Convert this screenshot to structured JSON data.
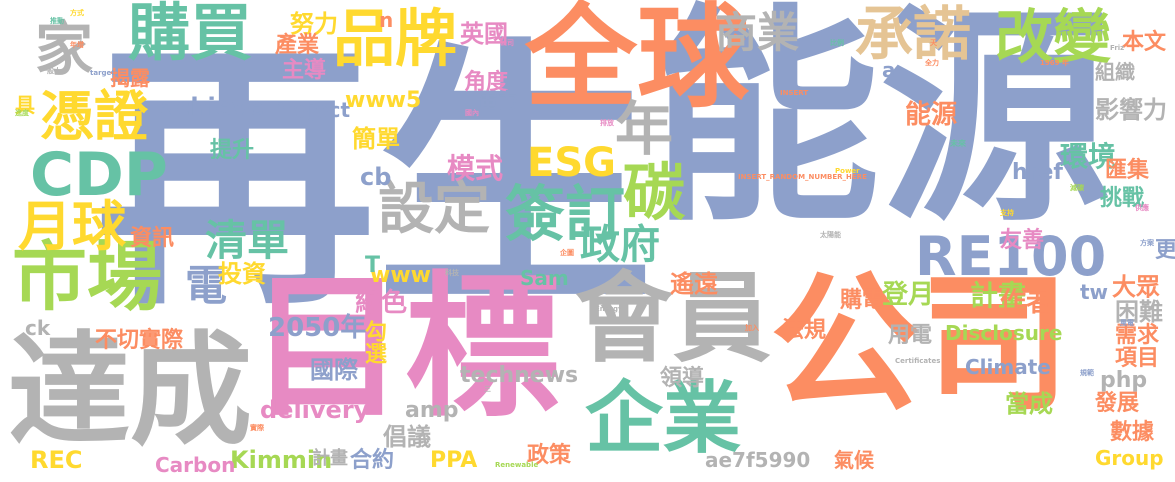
{
  "palette": {
    "blue": "#8da0cb",
    "orange": "#fc8d62",
    "pink": "#e78ac3",
    "green": "#a6d854",
    "teal": "#66c2a5",
    "yellow": "#ffd92f",
    "tan": "#e5c494",
    "gray": "#b3b3b3"
  },
  "words": [
    {
      "text": "再生",
      "color": "blue"
    },
    {
      "text": "能源",
      "color": "blue"
    },
    {
      "text": "目標",
      "color": "pink"
    },
    {
      "text": "公司",
      "color": "orange"
    },
    {
      "text": "全球",
      "color": "orange"
    },
    {
      "text": "達成",
      "color": "gray"
    },
    {
      "text": "會員",
      "color": "gray"
    },
    {
      "text": "企業",
      "color": "teal"
    },
    {
      "text": "市場",
      "color": "green"
    },
    {
      "text": "購買",
      "color": "teal"
    },
    {
      "text": "品牌",
      "color": "yellow"
    },
    {
      "text": "承諾",
      "color": "tan"
    },
    {
      "text": "改變",
      "color": "green"
    },
    {
      "text": "商業",
      "color": "gray"
    },
    {
      "text": "家",
      "color": "gray"
    },
    {
      "text": "憑證",
      "color": "yellow"
    },
    {
      "text": "CDP",
      "color": "teal"
    },
    {
      "text": "月球",
      "color": "yellow"
    },
    {
      "text": "設定",
      "color": "gray"
    },
    {
      "text": "簽訂",
      "color": "teal"
    },
    {
      "text": "RE100",
      "color": "blue"
    },
    {
      "text": "碳",
      "color": "green"
    },
    {
      "text": "政府",
      "color": "teal"
    },
    {
      "text": "年",
      "color": "gray"
    },
    {
      "text": "ESG",
      "color": "yellow"
    },
    {
      "text": "清單",
      "color": "teal"
    },
    {
      "text": "電",
      "color": "blue"
    },
    {
      "text": "2050年",
      "color": "blue"
    },
    {
      "text": "國際",
      "color": "blue"
    },
    {
      "text": "delivery",
      "color": "pink"
    },
    {
      "text": "technews",
      "color": "gray"
    },
    {
      "text": "英國",
      "color": "pink"
    },
    {
      "text": "努力",
      "color": "yellow"
    },
    {
      "text": "產業",
      "color": "orange"
    },
    {
      "text": "主導",
      "color": "pink"
    },
    {
      "text": "角度",
      "color": "pink"
    },
    {
      "text": "achieve",
      "color": "blue"
    },
    {
      "text": "Project",
      "color": "blue"
    },
    {
      "text": "電力",
      "color": "blue"
    },
    {
      "text": "www5",
      "color": "yellow"
    },
    {
      "text": "簡單",
      "color": "yellow"
    },
    {
      "text": "提升",
      "color": "teal"
    },
    {
      "text": "模式",
      "color": "pink"
    },
    {
      "text": "cb",
      "color": "blue"
    },
    {
      "text": "資訊",
      "color": "orange"
    },
    {
      "text": "投資",
      "color": "yellow"
    },
    {
      "text": "www",
      "color": "yellow"
    },
    {
      "text": "Sam",
      "color": "teal"
    },
    {
      "text": "遙遠",
      "color": "orange"
    },
    {
      "text": "登月",
      "color": "green"
    },
    {
      "text": "計畫",
      "color": "green"
    },
    {
      "text": "綠色",
      "color": "pink"
    },
    {
      "text": "購電",
      "color": "orange"
    },
    {
      "text": "作者",
      "color": "orange"
    },
    {
      "text": "不切實際",
      "color": "orange"
    },
    {
      "text": "用電",
      "color": "gray"
    },
    {
      "text": "Disclosure",
      "color": "green"
    },
    {
      "text": "勾選",
      "color": "yellow"
    },
    {
      "text": "法規",
      "color": "orange"
    },
    {
      "text": "Climate",
      "color": "blue"
    },
    {
      "text": "amp",
      "color": "gray"
    },
    {
      "text": "當成",
      "color": "green"
    },
    {
      "text": "倡議",
      "color": "gray"
    },
    {
      "text": "領導",
      "color": "gray"
    },
    {
      "text": "發展",
      "color": "orange"
    },
    {
      "text": "數據",
      "color": "orange"
    },
    {
      "text": "合約",
      "color": "blue"
    },
    {
      "text": "PPA",
      "color": "yellow"
    },
    {
      "text": "政策",
      "color": "orange"
    },
    {
      "text": "Kimmin",
      "color": "green"
    },
    {
      "text": "REC",
      "color": "yellow"
    },
    {
      "text": "Carbon",
      "color": "pink"
    },
    {
      "text": "氣候",
      "color": "orange"
    },
    {
      "text": "ae7f5990",
      "color": "gray"
    },
    {
      "text": "Group",
      "color": "yellow"
    },
    {
      "text": "能源",
      "color": "orange"
    },
    {
      "text": "環境",
      "color": "teal"
    },
    {
      "text": "挑戰",
      "color": "teal"
    },
    {
      "text": "友善",
      "color": "pink"
    },
    {
      "text": "匯集",
      "color": "orange"
    },
    {
      "text": "href",
      "color": "blue"
    },
    {
      "text": "影響力",
      "color": "gray"
    },
    {
      "text": "組織",
      "color": "gray"
    },
    {
      "text": "本文",
      "color": "orange"
    },
    {
      "text": "大眾",
      "color": "orange"
    },
    {
      "text": "困難",
      "color": "gray"
    },
    {
      "text": "需求",
      "color": "orange"
    },
    {
      "text": "項目",
      "color": "orange"
    },
    {
      "text": "php",
      "color": "gray"
    },
    {
      "text": "tw",
      "color": "blue"
    },
    {
      "text": "更",
      "color": "blue"
    },
    {
      "text": "ck",
      "color": "gray"
    },
    {
      "text": "揭露",
      "color": "orange"
    },
    {
      "text": "T",
      "color": "teal"
    },
    {
      "text": "a",
      "color": "blue"
    },
    {
      "text": "n",
      "color": "orange"
    },
    {
      "text": "計畫",
      "color": "gray"
    },
    {
      "text": "具",
      "color": "yellow"
    },
    {
      "text": "三",
      "color": "gray"
    },
    {
      "text": "INSERT_RANDOM_NUMBER_HERE",
      "color": "orange"
    },
    {
      "text": "Certificates",
      "color": "gray"
    },
    {
      "text": "Renewable",
      "color": "green"
    },
    {
      "text": "Energy",
      "color": "gray"
    },
    {
      "text": "Power",
      "color": "yellow"
    },
    {
      "text": "target",
      "color": "blue"
    },
    {
      "text": "INSERT",
      "color": "orange"
    },
    {
      "text": "Friz",
      "color": "gray"
    },
    {
      "text": "一般人",
      "color": "gray"
    },
    {
      "text": "年增",
      "color": "orange"
    },
    {
      "text": "公司",
      "color": "pink"
    },
    {
      "text": "未來",
      "color": "teal"
    },
    {
      "text": "減碳",
      "color": "green"
    },
    {
      "text": "排放",
      "color": "pink"
    },
    {
      "text": "全力",
      "color": "orange"
    },
    {
      "text": "方案",
      "color": "blue"
    },
    {
      "text": "支持",
      "color": "yellow"
    },
    {
      "text": "比例",
      "color": "teal"
    },
    {
      "text": "太陽能",
      "color": "gray"
    },
    {
      "text": "風電",
      "color": "blue"
    },
    {
      "text": "企圖",
      "color": "orange"
    },
    {
      "text": "國內",
      "color": "pink"
    },
    {
      "text": "實際",
      "color": "orange"
    },
    {
      "text": "方式",
      "color": "yellow"
    },
    {
      "text": "推動",
      "color": "teal"
    },
    {
      "text": "進度",
      "color": "green"
    },
    {
      "text": "供應",
      "color": "pink"
    },
    {
      "text": "加入",
      "color": "orange"
    },
    {
      "text": "規範",
      "color": "blue"
    },
    {
      "text": "天",
      "color": "orange"
    },
    {
      "text": "1969 年",
      "color": "orange"
    },
    {
      "text": "科技",
      "color": "gray"
    },
    {
      "text": "製造",
      "color": "gray"
    },
    {
      "text": "成本",
      "color": "yellow"
    },
    {
      "text": "宣示",
      "color": "pink"
    },
    {
      "text": "管理",
      "color": "pink"
    },
    {
      "text": "協會",
      "color": "teal"
    },
    {
      "text": "成員",
      "color": "yellow"
    }
  ]
}
